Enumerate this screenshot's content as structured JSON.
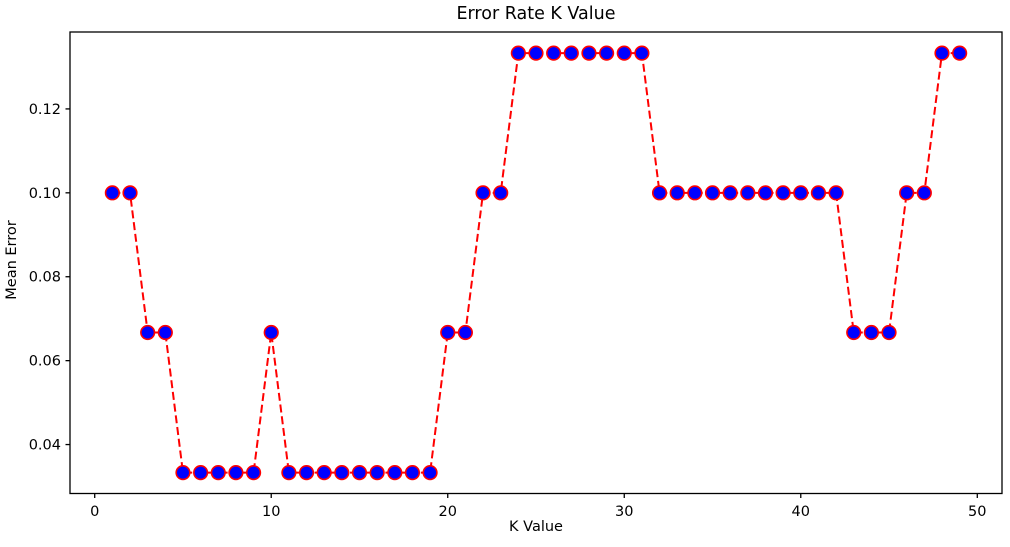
{
  "chart_data": {
    "type": "line",
    "title": "Error Rate K Value",
    "xlabel": "K Value",
    "ylabel": "Mean Error",
    "x": [
      1,
      2,
      3,
      4,
      5,
      6,
      7,
      8,
      9,
      10,
      11,
      12,
      13,
      14,
      15,
      16,
      17,
      18,
      19,
      20,
      21,
      22,
      23,
      24,
      25,
      26,
      27,
      28,
      29,
      30,
      31,
      32,
      33,
      34,
      35,
      36,
      37,
      38,
      39,
      40,
      41,
      42,
      43,
      44,
      45,
      46,
      47,
      48,
      49
    ],
    "y": [
      0.1,
      0.1,
      0.0667,
      0.0667,
      0.0333,
      0.0333,
      0.0333,
      0.0333,
      0.0333,
      0.0667,
      0.0333,
      0.0333,
      0.0333,
      0.0333,
      0.0333,
      0.0333,
      0.0333,
      0.0333,
      0.0333,
      0.0667,
      0.0667,
      0.1,
      0.1,
      0.1333,
      0.1333,
      0.1333,
      0.1333,
      0.1333,
      0.1333,
      0.1333,
      0.1333,
      0.1,
      0.1,
      0.1,
      0.1,
      0.1,
      0.1,
      0.1,
      0.1,
      0.1,
      0.1,
      0.1,
      0.0667,
      0.0667,
      0.0667,
      0.1,
      0.1,
      0.1333,
      0.1333
    ],
    "xlim": [
      -1.4,
      51.4
    ],
    "ylim": [
      0.028333,
      0.138333
    ],
    "xticks": [
      0,
      10,
      20,
      30,
      40,
      50
    ],
    "xtick_labels": [
      "0",
      "10",
      "20",
      "30",
      "40",
      "50"
    ],
    "yticks": [
      0.04,
      0.06,
      0.08,
      0.1,
      0.12
    ],
    "ytick_labels": [
      "0.04",
      "0.06",
      "0.08",
      "0.10",
      "0.12"
    ],
    "grid": false,
    "legend": null,
    "style": {
      "line_color": "#ff0000",
      "line_style": "dashed",
      "marker": "circle",
      "marker_fill": "#0000ff",
      "marker_edge": "#ff0000",
      "spine_color": "#000000",
      "background": "#ffffff"
    }
  }
}
